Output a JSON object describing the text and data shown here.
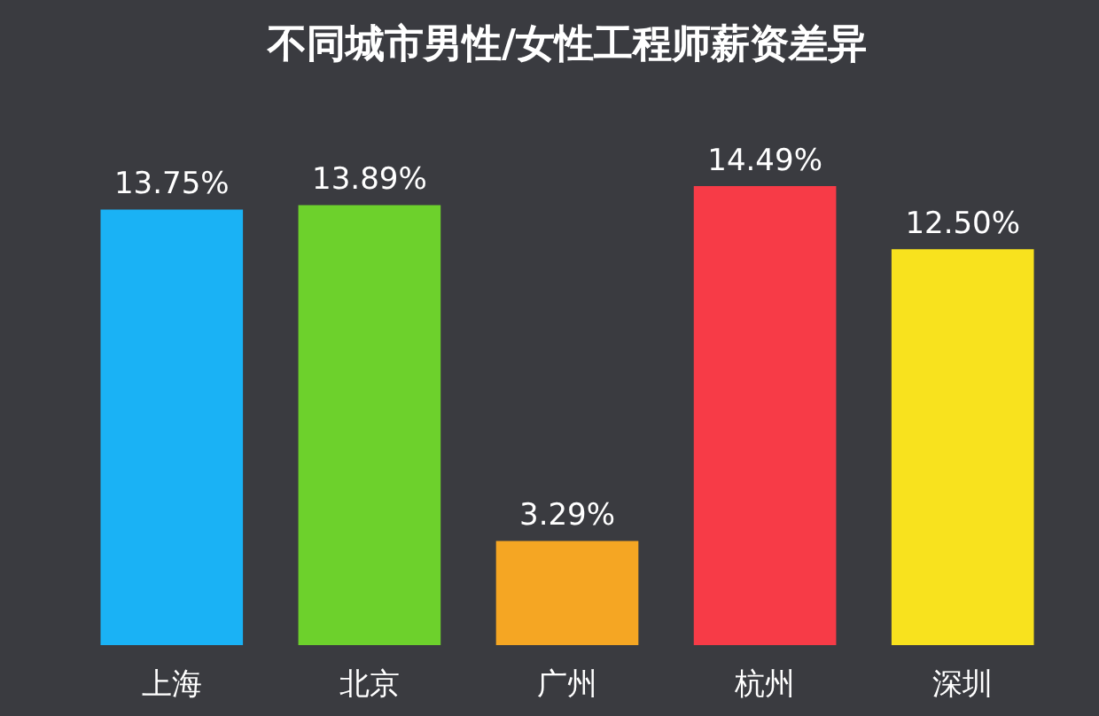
{
  "chart_data": {
    "type": "bar",
    "title": "不同城市男性/女性工程师薪资差异",
    "categories": [
      "上海",
      "北京",
      "广州",
      "杭州",
      "深圳"
    ],
    "values": [
      13.75,
      13.89,
      3.29,
      14.49,
      12.5
    ],
    "value_labels": [
      "13.75%",
      "13.89%",
      "3.29%",
      "14.49%",
      "12.50%"
    ],
    "colors": [
      "#1ab2f5",
      "#6dd12c",
      "#f5a623",
      "#f73b47",
      "#f8e21e"
    ],
    "grid": false,
    "tick_labels": "x"
  }
}
